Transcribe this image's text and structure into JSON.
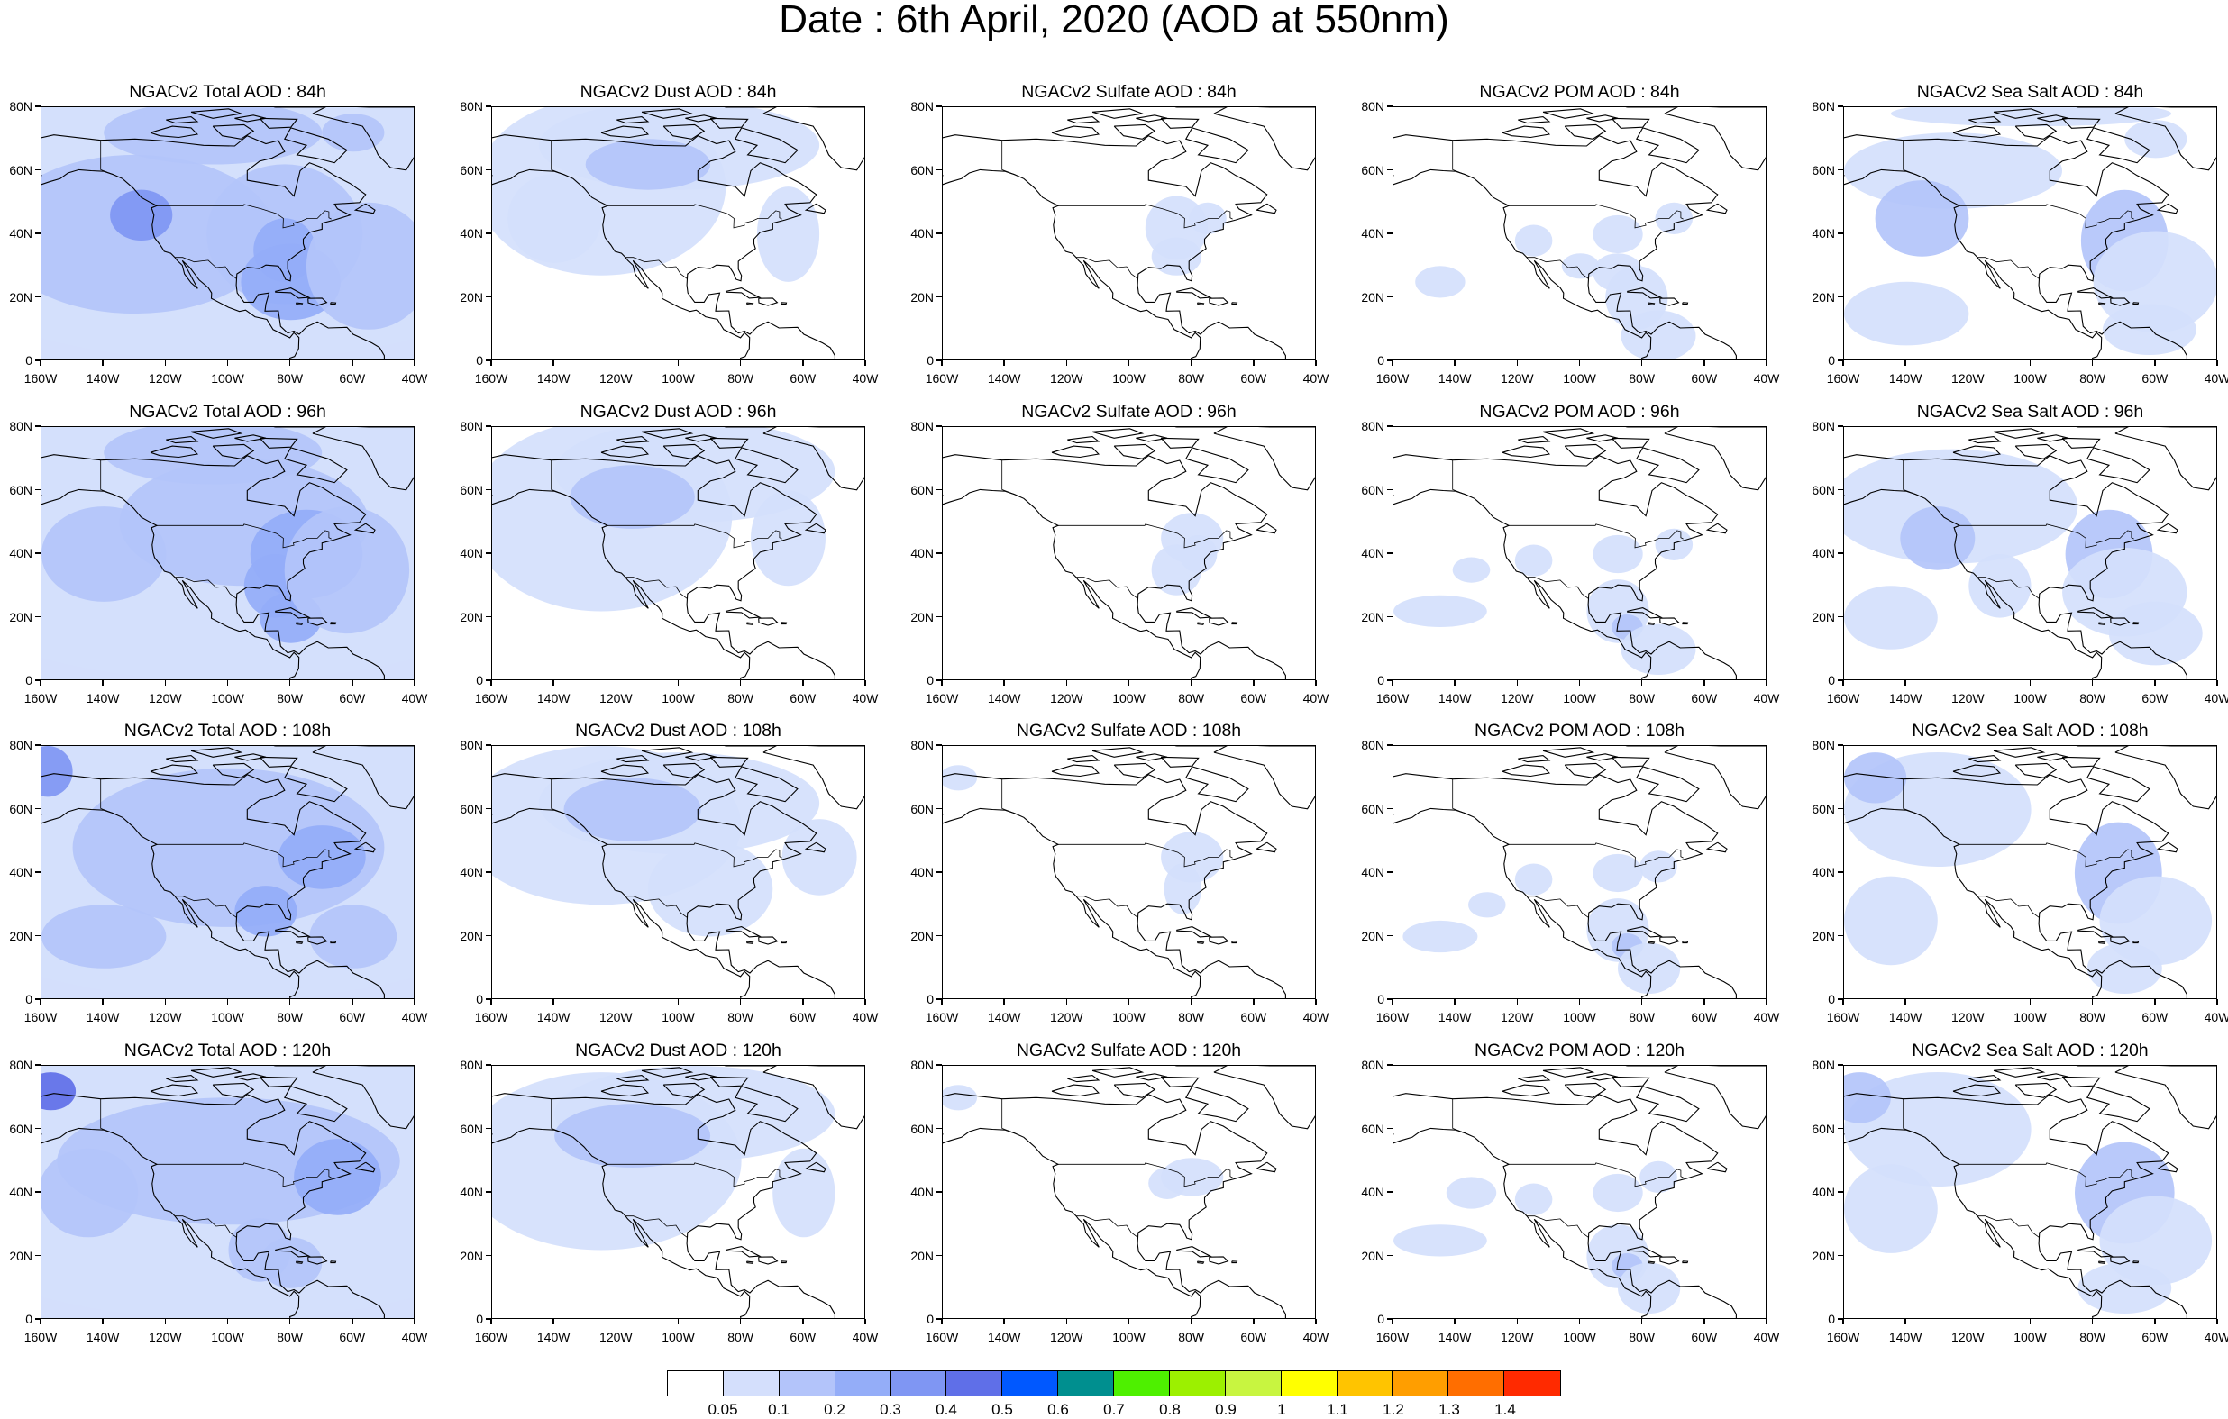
{
  "title": "Date : 6th April, 2020 (AOD at 550nm)",
  "lat_labels": [
    "80N",
    "60N",
    "40N",
    "20N",
    "0"
  ],
  "lon_labels": [
    "160W",
    "140W",
    "120W",
    "100W",
    "80W",
    "60W",
    "40W"
  ],
  "colors": {
    "scale": [
      "#ffffff",
      "#d4dffc",
      "#b3c4fa",
      "#94adf8",
      "#7f96f3",
      "#5f6fe8",
      "#0058ff",
      "#008f8f",
      "#4ef000",
      "#9cf000",
      "#c8f540",
      "#ffff00",
      "#ffc400",
      "#ff9e00",
      "#ff6e00",
      "#ff2a00"
    ],
    "coastline": "#000000"
  },
  "colorbar": {
    "labels": [
      "0.05",
      "0.1",
      "0.2",
      "0.3",
      "0.4",
      "0.5",
      "0.6",
      "0.7",
      "0.8",
      "0.9",
      "1",
      "1.1",
      "1.2",
      "1.3",
      "1.4"
    ]
  },
  "panels": [
    [
      "NGACv2 Total AOD : 84h",
      "NGACv2 Dust AOD : 84h",
      "NGACv2 Sulfate AOD : 84h",
      "NGACv2 POM AOD : 84h",
      "NGACv2 Sea Salt AOD : 84h"
    ],
    [
      "NGACv2 Total AOD : 96h",
      "NGACv2 Dust AOD : 96h",
      "NGACv2 Sulfate AOD : 96h",
      "NGACv2 POM AOD : 96h",
      "NGACv2 Sea Salt AOD : 96h"
    ],
    [
      "NGACv2 Total AOD : 108h",
      "NGACv2 Dust AOD : 108h",
      "NGACv2 Sulfate AOD : 108h",
      "NGACv2 POM AOD : 108h",
      "NGACv2 Sea Salt AOD : 108h"
    ],
    [
      "NGACv2 Total AOD : 120h",
      "NGACv2 Dust AOD : 120h",
      "NGACv2 Sulfate AOD : 120h",
      "NGACv2 POM AOD : 120h",
      "NGACv2 Sea Salt  AOD : 120h"
    ]
  ]
}
